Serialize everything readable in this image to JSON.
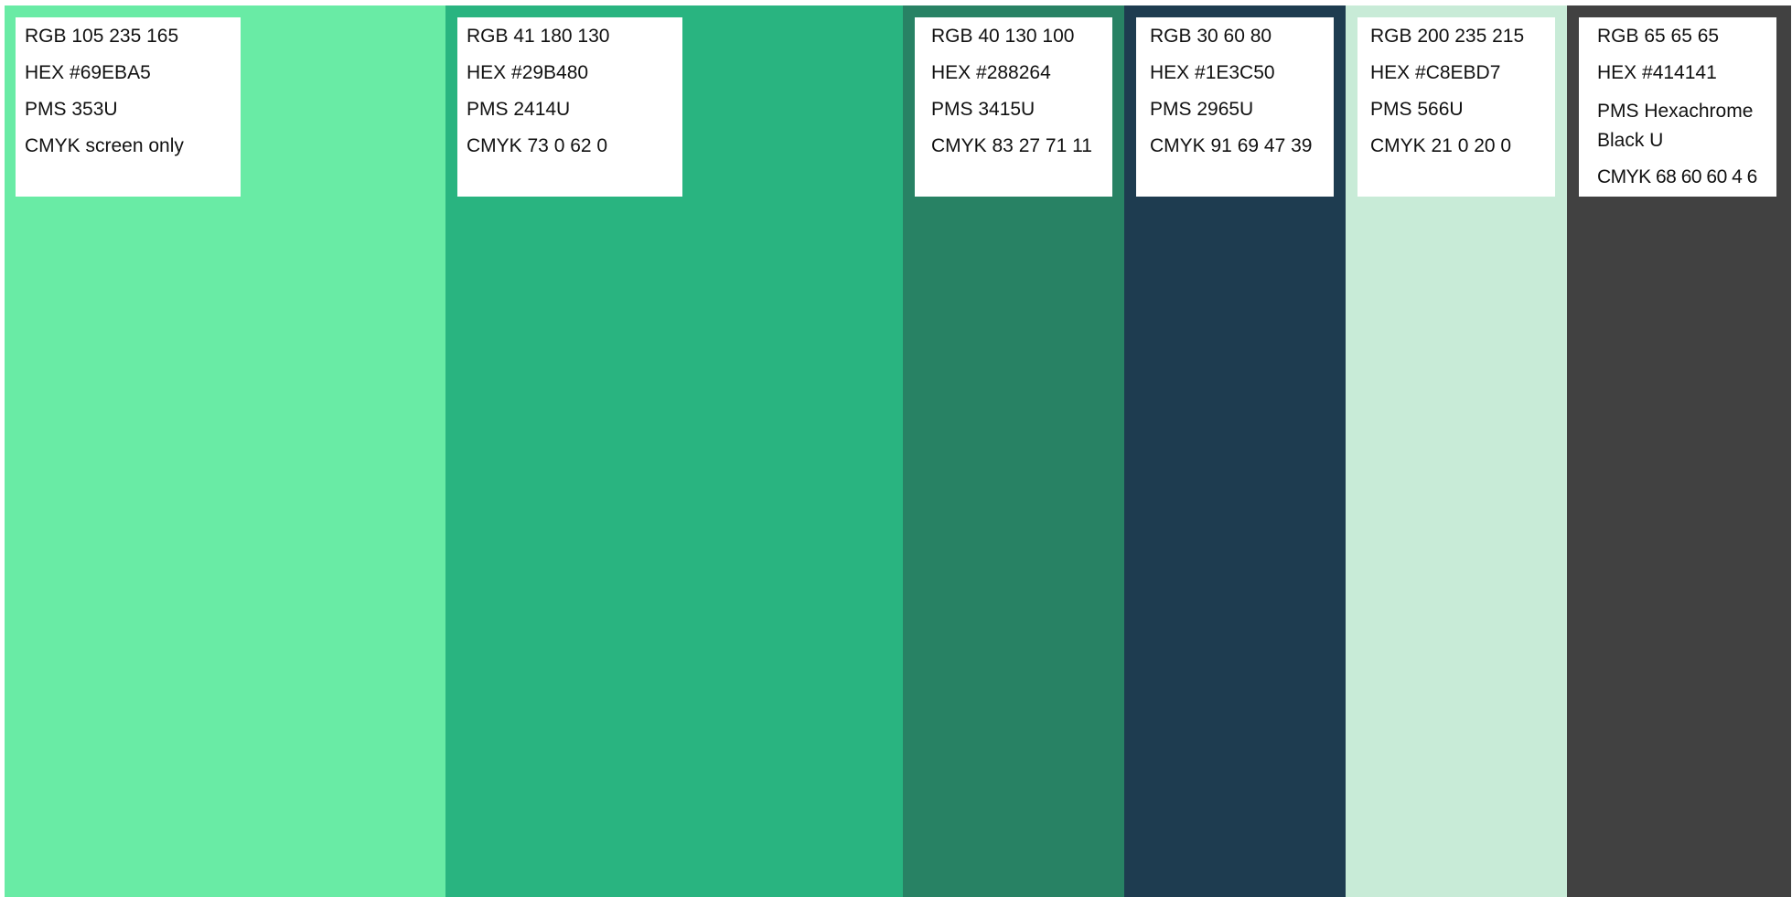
{
  "swatches": [
    {
      "rgb": "RGB 105 235 165",
      "hex": "HEX #69EBA5",
      "pms": "PMS 353U",
      "cmyk": "CMYK screen only",
      "color": "#69EBA5"
    },
    {
      "rgb": "RGB 41 180 130",
      "hex": "HEX #29B480",
      "pms": "PMS 2414U",
      "cmyk": "CMYK 73 0 62 0",
      "color": "#29B480"
    },
    {
      "rgb": "RGB 40 130 100",
      "hex": "HEX #288264",
      "pms": "PMS 3415U",
      "cmyk": "CMYK 83 27 71 11",
      "color": "#288264"
    },
    {
      "rgb": "RGB 30 60 80",
      "hex": "HEX #1E3C50",
      "pms": "PMS 2965U",
      "cmyk": "CMYK 91 69 47 39",
      "color": "#1E3C50"
    },
    {
      "rgb": "RGB 200 235 215",
      "hex": "HEX #C8EBD7",
      "pms": "PMS 566U",
      "cmyk": "CMYK 21 0 20 0",
      "color": "#C8EBD7"
    },
    {
      "rgb": "RGB 65 65 65",
      "hex": "HEX #414141",
      "pms": "PMS Hexachrome Black U",
      "cmyk": "CMYK 68 60 60 4 6",
      "color": "#414141"
    }
  ]
}
